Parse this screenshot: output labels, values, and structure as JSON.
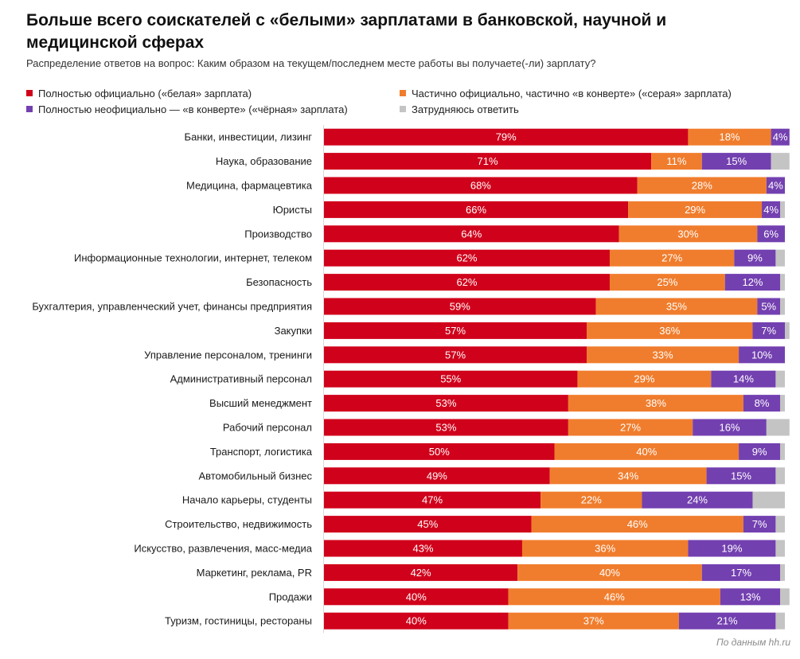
{
  "chart_data": {
    "type": "bar",
    "orientation": "horizontal",
    "stacked": true,
    "title": "Больше всего соискателей с «белыми» зарплатами в банковской, научной и медицинской сферах",
    "subtitle": "Распределение ответов на вопрос: Каким образом на текущем/последнем месте работы вы получаете(-ли) зарплату?",
    "source": "По данным hh.ru",
    "xlim": [
      0,
      100
    ],
    "categories": [
      "Банки, инвестиции, лизинг",
      "Наука, образование",
      "Медицина, фармацевтика",
      "Юристы",
      "Производство",
      "Информационные технологии, интернет, телеком",
      "Безопасность",
      "Бухгалтерия, управленческий учет, финансы предприятия",
      "Закупки",
      "Управление персоналом, тренинги",
      "Административный персонал",
      "Высший менеджмент",
      "Рабочий персонал",
      "Транспорт, логистика",
      "Автомобильный бизнес",
      "Начало карьеры, студенты",
      "Строительство, недвижимость",
      "Искусство, развлечения, масс-медиа",
      "Маркетинг, реклама, PR",
      "Продажи",
      "Туризм, гостиницы, рестораны"
    ],
    "series": [
      {
        "name": "Полностью официально («белая» зарплата)",
        "color": "#d0021b",
        "values": [
          79,
          71,
          68,
          66,
          64,
          62,
          62,
          59,
          57,
          57,
          55,
          53,
          53,
          50,
          49,
          47,
          45,
          43,
          42,
          40,
          40
        ],
        "labels": [
          "79%",
          "71%",
          "68%",
          "66%",
          "64%",
          "62%",
          "62%",
          "59%",
          "57%",
          "57%",
          "55%",
          "53%",
          "53%",
          "50%",
          "49%",
          "47%",
          "45%",
          "43%",
          "42%",
          "40%",
          "40%"
        ]
      },
      {
        "name": "Частично официально, частично «в конверте» («серая» зарплата)",
        "color": "#f07d2d",
        "values": [
          18,
          11,
          28,
          29,
          30,
          27,
          25,
          35,
          36,
          33,
          29,
          38,
          27,
          40,
          34,
          22,
          46,
          36,
          40,
          46,
          37
        ],
        "labels": [
          "18%",
          "11%",
          "28%",
          "29%",
          "30%",
          "27%",
          "25%",
          "35%",
          "36%",
          "33%",
          "29%",
          "38%",
          "27%",
          "40%",
          "34%",
          "22%",
          "46%",
          "36%",
          "40%",
          "46%",
          "37%"
        ]
      },
      {
        "name": "Полностью неофициально — «в конверте» («чёрная» зарплата)",
        "color": "#7340b0",
        "values": [
          4,
          15,
          4,
          4,
          6,
          9,
          12,
          5,
          7,
          10,
          14,
          8,
          16,
          9,
          15,
          24,
          7,
          19,
          17,
          13,
          21
        ],
        "labels": [
          "4%",
          "15%",
          "4%",
          "4%",
          "6%",
          "9%",
          "12%",
          "5%",
          "7%",
          "10%",
          "14%",
          "8%",
          "16%",
          "9%",
          "15%",
          "24%",
          "7%",
          "19%",
          "17%",
          "13%",
          "21%"
        ]
      },
      {
        "name": "Затрудняюсь ответить",
        "color": "#c4c4c4",
        "values": [
          0,
          4,
          0,
          1,
          0,
          2,
          1,
          1,
          1,
          0,
          2,
          1,
          5,
          1,
          2,
          7,
          2,
          2,
          1,
          2,
          2
        ],
        "labels": [
          "",
          "",
          "",
          "",
          "",
          "",
          "",
          "",
          "",
          "",
          "",
          "",
          "",
          "",
          "",
          "",
          "",
          "",
          "",
          "",
          ""
        ]
      }
    ]
  },
  "legend": {
    "item_white": "Полностью официально («белая» зарплата)",
    "item_grey": "Частично официально, частично «в конверте» («серая» зарплата)",
    "item_black": "Полностью неофициально — «в конверте» («чёрная» зарплата)",
    "item_unsure": "Затрудняюсь ответить"
  }
}
